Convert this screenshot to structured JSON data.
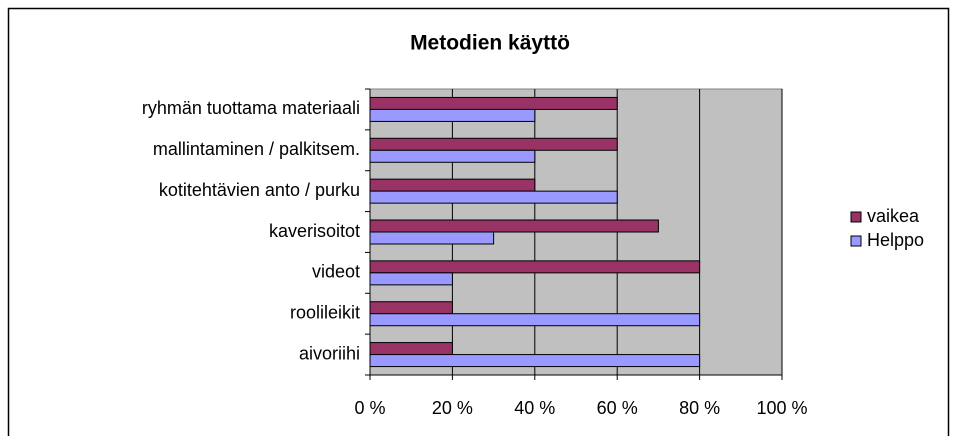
{
  "chart_data": {
    "type": "bar",
    "orientation": "horizontal",
    "title": "Metodien käyttö",
    "categories": [
      "ryhmän tuottama materiaali",
      "mallintaminen / palkitsem.",
      "kotitehtävien anto / purku",
      "kaverisoitot",
      "videot",
      "roolileikit",
      "aivoriihi"
    ],
    "series": [
      {
        "name": "vaikea",
        "color": "#993366",
        "values": [
          60,
          60,
          40,
          70,
          80,
          20,
          20
        ]
      },
      {
        "name": "Helppo",
        "color": "#9999ff",
        "values": [
          40,
          40,
          60,
          30,
          20,
          80,
          80
        ]
      }
    ],
    "xlim": [
      0,
      100
    ],
    "xticks": [
      {
        "value": 0,
        "label": "0 %"
      },
      {
        "value": 20,
        "label": "20 %"
      },
      {
        "value": 40,
        "label": "40 %"
      },
      {
        "value": 60,
        "label": "60 %"
      },
      {
        "value": 80,
        "label": "80 %"
      },
      {
        "value": 100,
        "label": "100 %"
      }
    ],
    "grid": true,
    "legend": "right"
  }
}
